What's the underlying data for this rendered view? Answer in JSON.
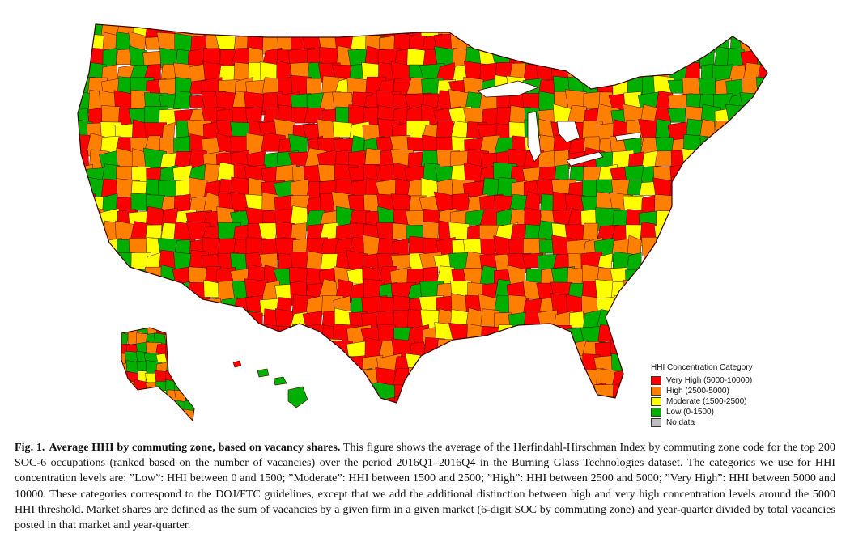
{
  "map": {
    "legend": {
      "title": "HHI Concentration Category",
      "items": [
        {
          "label": "Very High (5000-10000)",
          "color": "#ff0000"
        },
        {
          "label": "High (2500-5000)",
          "color": "#ff8000"
        },
        {
          "label": "Moderate (1500-2500)",
          "color": "#ffff00"
        },
        {
          "label": "Low (0-1500)",
          "color": "#00b000"
        },
        {
          "label": "No data",
          "color": "#bebebe"
        }
      ]
    },
    "region_colors": {
      "very_high": "#ff0000",
      "high": "#ff8000",
      "moderate": "#ffff00",
      "low": "#00b000",
      "no_data": "#bebebe",
      "border": "#3a0000"
    }
  },
  "caption": {
    "label": "Fig. 1.",
    "title": "Average HHI by commuting zone, based on vacancy shares.",
    "text": "This figure shows the average of the Herfindahl-Hirschman Index by commuting zone code for the top 200 SOC-6 occupations (ranked based on the number of vacancies) over the period 2016Q1–2016Q4 in the Burning Glass Technologies dataset. The categories we use for HHI concentration levels are: ”Low”: HHI between 0 and 1500; ”Moderate”: HHI between 1500 and 2500; ”High”: HHI between 2500 and 5000; ”Very High”: HHI between 5000 and 10000. These categories correspond to the DOJ/FTC guidelines, except that we add the additional distinction between high and very high concentration levels around the 5000 HHI threshold. Market shares are defined as the sum of vacancies by a given firm in a given market (6-digit SOC by commuting zone) and year-quarter divided by total vacancies posted in that market and year-quarter."
  }
}
